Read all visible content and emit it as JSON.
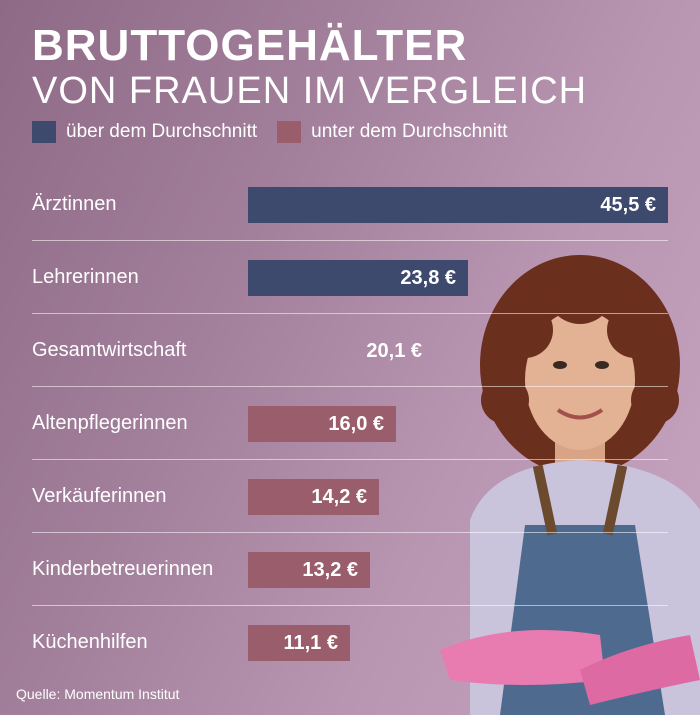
{
  "title_line1": "BRUTTOGEHÄLTER",
  "title_line2": "VON FRAUEN IM VERGLEICH",
  "legend": {
    "above": "über dem Durchschnitt",
    "below": "unter dem Durchschnitt"
  },
  "colors": {
    "above": "#3d4a6e",
    "below": "#9a5d6b",
    "average": "#ffffff"
  },
  "source": "Quelle: Momentum Institut",
  "chart_data": {
    "type": "bar",
    "orientation": "horizontal",
    "categories": [
      "Ärztinnen",
      "Lehrerinnen",
      "Gesamtwirtschaft",
      "Altenpflegerinnen",
      "Verkäuferinnen",
      "Kinderbetreuerinnen",
      "Küchenhilfen"
    ],
    "values": [
      45.5,
      23.8,
      20.1,
      16.0,
      14.2,
      13.2,
      11.1
    ],
    "value_labels": [
      "45,5 €",
      "23,8 €",
      "20,1 €",
      "16,0 €",
      "14,2 €",
      "13,2 €",
      "11,1 €"
    ],
    "status": [
      "above",
      "above",
      "average",
      "below",
      "below",
      "below",
      "below"
    ],
    "xlim": [
      0,
      45.5
    ],
    "grid": false,
    "legend_position": "top-left"
  }
}
